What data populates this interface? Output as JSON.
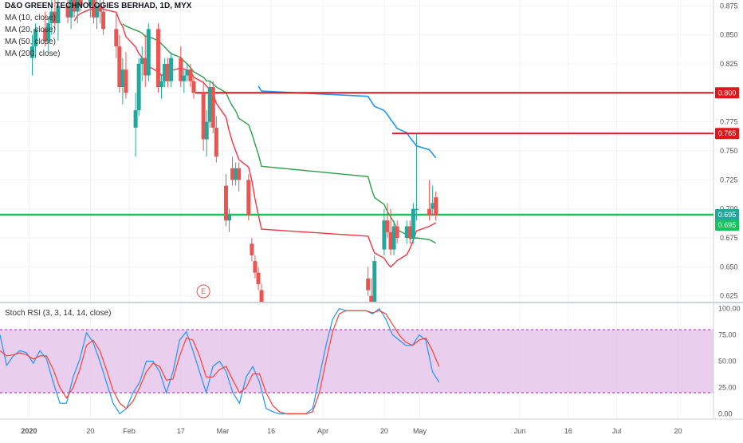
{
  "chart_data": [
    {
      "type": "candlestick",
      "title": "D&O GREEN TECHNOLOGIES BERHAD, 1D, MYX",
      "legend": [
        "MA (10, close)",
        "MA (20, close)",
        "MA (50, close)",
        "MA (200, close)"
      ],
      "ylim": [
        0.62,
        0.88
      ],
      "y_ticks": [
        "0.875",
        "0.850",
        "0.825",
        "0.800",
        "0.775",
        "0.750",
        "0.725",
        "0.700",
        "0.675",
        "0.650",
        "0.625"
      ],
      "x_ticks": [
        "2020",
        "20",
        "Feb",
        "17",
        "Mar",
        "16",
        "Apr",
        "20",
        "May",
        "Jun",
        "16",
        "Jul",
        "20"
      ],
      "price_labels": [
        {
          "value": 0.8,
          "text": "0.800",
          "color": "#e0161b"
        },
        {
          "value": 0.765,
          "text": "0.765",
          "color": "#e0161b"
        },
        {
          "value": 0.695,
          "text": "0.695",
          "color": "#26a69a"
        },
        {
          "value": 0.695,
          "text": "0.695",
          "color": "#18c35a"
        }
      ],
      "horizontal_lines": [
        {
          "value": 0.8,
          "color": "#e0161b"
        },
        {
          "value": 0.765,
          "color": "#e0161b"
        },
        {
          "value": 0.695,
          "color": "#18c35a"
        }
      ],
      "earnings_marker": "E",
      "candles": [
        {
          "date": "2020-01-02",
          "open": 0.83,
          "high": 0.85,
          "low": 0.815,
          "close": 0.84
        },
        {
          "date": "2020-01-03",
          "open": 0.84,
          "high": 0.86,
          "low": 0.83,
          "close": 0.855
        },
        {
          "date": "2020-01-06",
          "open": 0.855,
          "high": 0.87,
          "low": 0.84,
          "close": 0.845
        },
        {
          "date": "2020-01-07",
          "open": 0.845,
          "high": 0.865,
          "low": 0.835,
          "close": 0.86
        },
        {
          "date": "2020-01-08",
          "open": 0.86,
          "high": 0.88,
          "low": 0.85,
          "close": 0.87
        },
        {
          "date": "2020-01-09",
          "open": 0.87,
          "high": 0.885,
          "low": 0.855,
          "close": 0.86
        },
        {
          "date": "2020-01-10",
          "open": 0.86,
          "high": 0.88,
          "low": 0.845,
          "close": 0.875
        },
        {
          "date": "2020-01-13",
          "open": 0.875,
          "high": 0.89,
          "low": 0.86,
          "close": 0.865
        },
        {
          "date": "2020-01-14",
          "open": 0.865,
          "high": 0.885,
          "low": 0.855,
          "close": 0.88
        },
        {
          "date": "2020-01-15",
          "open": 0.88,
          "high": 0.89,
          "low": 0.865,
          "close": 0.87
        },
        {
          "date": "2020-01-16",
          "open": 0.87,
          "high": 0.89,
          "low": 0.86,
          "close": 0.885
        },
        {
          "date": "2020-01-17",
          "open": 0.885,
          "high": 0.89,
          "low": 0.87,
          "close": 0.875
        },
        {
          "date": "2020-01-20",
          "open": 0.875,
          "high": 0.89,
          "low": 0.865,
          "close": 0.88
        },
        {
          "date": "2020-01-21",
          "open": 0.88,
          "high": 0.89,
          "low": 0.86,
          "close": 0.865
        },
        {
          "date": "2020-01-22",
          "open": 0.865,
          "high": 0.88,
          "low": 0.855,
          "close": 0.875
        },
        {
          "date": "2020-01-23",
          "open": 0.875,
          "high": 0.89,
          "low": 0.86,
          "close": 0.87
        },
        {
          "date": "2020-01-24",
          "open": 0.87,
          "high": 0.885,
          "low": 0.85,
          "close": 0.855
        },
        {
          "date": "2020-01-28",
          "open": 0.855,
          "high": 0.87,
          "low": 0.83,
          "close": 0.84
        },
        {
          "date": "2020-01-29",
          "open": 0.84,
          "high": 0.85,
          "low": 0.8,
          "close": 0.805
        },
        {
          "date": "2020-01-30",
          "open": 0.805,
          "high": 0.83,
          "low": 0.79,
          "close": 0.82
        },
        {
          "date": "2020-01-31",
          "open": 0.82,
          "high": 0.835,
          "low": 0.795,
          "close": 0.8
        },
        {
          "date": "2020-02-03",
          "open": 0.77,
          "high": 0.8,
          "low": 0.745,
          "close": 0.785
        },
        {
          "date": "2020-02-04",
          "open": 0.785,
          "high": 0.83,
          "low": 0.78,
          "close": 0.825
        },
        {
          "date": "2020-02-05",
          "open": 0.825,
          "high": 0.84,
          "low": 0.81,
          "close": 0.83
        },
        {
          "date": "2020-02-06",
          "open": 0.83,
          "high": 0.85,
          "low": 0.805,
          "close": 0.815
        },
        {
          "date": "2020-02-07",
          "open": 0.815,
          "high": 0.86,
          "low": 0.81,
          "close": 0.855
        },
        {
          "date": "2020-02-10",
          "open": 0.855,
          "high": 0.86,
          "low": 0.8,
          "close": 0.805
        },
        {
          "date": "2020-02-11",
          "open": 0.805,
          "high": 0.815,
          "low": 0.795,
          "close": 0.81
        },
        {
          "date": "2020-02-12",
          "open": 0.81,
          "high": 0.83,
          "low": 0.805,
          "close": 0.825
        },
        {
          "date": "2020-02-13",
          "open": 0.825,
          "high": 0.83,
          "low": 0.805,
          "close": 0.81
        },
        {
          "date": "2020-02-14",
          "open": 0.81,
          "high": 0.835,
          "low": 0.805,
          "close": 0.83
        },
        {
          "date": "2020-02-17",
          "open": 0.83,
          "high": 0.84,
          "low": 0.805,
          "close": 0.81
        },
        {
          "date": "2020-02-18",
          "open": 0.81,
          "high": 0.82,
          "low": 0.8,
          "close": 0.815
        },
        {
          "date": "2020-02-19",
          "open": 0.815,
          "high": 0.825,
          "low": 0.81,
          "close": 0.82
        },
        {
          "date": "2020-02-20",
          "open": 0.82,
          "high": 0.825,
          "low": 0.805,
          "close": 0.81
        },
        {
          "date": "2020-02-21",
          "open": 0.81,
          "high": 0.815,
          "low": 0.795,
          "close": 0.8
        },
        {
          "date": "2020-02-24",
          "open": 0.8,
          "high": 0.81,
          "low": 0.75,
          "close": 0.76
        },
        {
          "date": "2020-02-25",
          "open": 0.76,
          "high": 0.785,
          "low": 0.745,
          "close": 0.775
        },
        {
          "date": "2020-02-26",
          "open": 0.775,
          "high": 0.81,
          "low": 0.77,
          "close": 0.805
        },
        {
          "date": "2020-02-27",
          "open": 0.805,
          "high": 0.81,
          "low": 0.765,
          "close": 0.77
        },
        {
          "date": "2020-02-28",
          "open": 0.77,
          "high": 0.78,
          "low": 0.74,
          "close": 0.745
        },
        {
          "date": "2020-03-02",
          "open": 0.72,
          "high": 0.73,
          "low": 0.685,
          "close": 0.69
        },
        {
          "date": "2020-03-03",
          "open": 0.69,
          "high": 0.7,
          "low": 0.68,
          "close": 0.695
        },
        {
          "date": "2020-03-04",
          "open": 0.735,
          "high": 0.745,
          "low": 0.72,
          "close": 0.725
        },
        {
          "date": "2020-03-05",
          "open": 0.725,
          "high": 0.74,
          "low": 0.72,
          "close": 0.735
        },
        {
          "date": "2020-03-06",
          "open": 0.735,
          "high": 0.74,
          "low": 0.715,
          "close": 0.725
        },
        {
          "date": "2020-03-09",
          "open": 0.725,
          "high": 0.73,
          "low": 0.69,
          "close": 0.695
        },
        {
          "date": "2020-03-10",
          "open": 0.67,
          "high": 0.675,
          "low": 0.655,
          "close": 0.66
        },
        {
          "date": "2020-03-11",
          "open": 0.655,
          "high": 0.66,
          "low": 0.64,
          "close": 0.645
        },
        {
          "date": "2020-03-12",
          "open": 0.645,
          "high": 0.65,
          "low": 0.63,
          "close": 0.635
        },
        {
          "date": "2020-03-13",
          "open": 0.63,
          "high": 0.635,
          "low": 0.615,
          "close": 0.62
        },
        {
          "date": "2020-04-15",
          "open": 0.64,
          "high": 0.65,
          "low": 0.625,
          "close": 0.63
        },
        {
          "date": "2020-04-16",
          "open": 0.625,
          "high": 0.64,
          "low": 0.615,
          "close": 0.62
        },
        {
          "date": "2020-04-17",
          "open": 0.615,
          "high": 0.66,
          "low": 0.61,
          "close": 0.655
        },
        {
          "date": "2020-04-20",
          "open": 0.665,
          "high": 0.7,
          "low": 0.66,
          "close": 0.69
        },
        {
          "date": "2020-04-21",
          "open": 0.69,
          "high": 0.705,
          "low": 0.675,
          "close": 0.68
        },
        {
          "date": "2020-04-22",
          "open": 0.68,
          "high": 0.7,
          "low": 0.66,
          "close": 0.665
        },
        {
          "date": "2020-04-23",
          "open": 0.665,
          "high": 0.69,
          "low": 0.66,
          "close": 0.685
        },
        {
          "date": "2020-04-24",
          "open": 0.685,
          "high": 0.69,
          "low": 0.67,
          "close": 0.675
        },
        {
          "date": "2020-04-27",
          "open": 0.675,
          "high": 0.69,
          "low": 0.67,
          "close": 0.685
        },
        {
          "date": "2020-04-28",
          "open": 0.685,
          "high": 0.69,
          "low": 0.67,
          "close": 0.675
        },
        {
          "date": "2020-04-29",
          "open": 0.675,
          "high": 0.705,
          "low": 0.67,
          "close": 0.7
        },
        {
          "date": "2020-04-30",
          "open": 0.7,
          "high": 0.765,
          "low": 0.69,
          "close": 0.7
        },
        {
          "date": "2020-05-04",
          "open": 0.7,
          "high": 0.725,
          "low": 0.69,
          "close": 0.695
        },
        {
          "date": "2020-05-05",
          "open": 0.7,
          "high": 0.72,
          "low": 0.695,
          "close": 0.705
        },
        {
          "date": "2020-05-06",
          "open": 0.71,
          "high": 0.715,
          "low": 0.69,
          "close": 0.695
        }
      ]
    },
    {
      "type": "line",
      "title": "Stoch RSI (3, 3, 14, 14, close)",
      "ylim": [
        -5,
        105
      ],
      "y_ticks": [
        "100.00",
        "75.00",
        "50.00",
        "25.00",
        "0.00"
      ],
      "band": [
        20,
        80
      ],
      "series": [
        {
          "name": "K",
          "color": "#2196f3",
          "values": [
            75,
            46,
            55,
            60,
            58,
            48,
            60,
            52,
            30,
            10,
            10,
            35,
            52,
            77,
            68,
            50,
            30,
            10,
            0,
            5,
            20,
            30,
            50,
            50,
            40,
            20,
            40,
            70,
            78,
            60,
            40,
            20,
            45,
            50,
            40,
            20,
            10,
            35,
            45,
            30,
            5,
            2,
            0,
            0,
            0,
            0,
            0,
            5,
            35,
            65,
            90,
            100,
            98,
            98,
            98,
            98,
            95,
            100,
            90,
            75,
            70,
            65,
            65,
            75,
            70,
            40,
            30
          ]
        },
        {
          "name": "D",
          "color": "#f44336",
          "values": [
            60,
            55,
            56,
            58,
            56,
            52,
            55,
            55,
            42,
            25,
            15,
            25,
            42,
            65,
            70,
            60,
            42,
            22,
            10,
            5,
            12,
            25,
            40,
            48,
            45,
            32,
            33,
            55,
            72,
            70,
            55,
            35,
            35,
            42,
            45,
            32,
            20,
            25,
            38,
            38,
            20,
            8,
            2,
            0,
            0,
            0,
            0,
            2,
            20,
            50,
            78,
            95,
            98,
            98,
            98,
            98,
            96,
            98,
            95,
            85,
            75,
            68,
            65,
            70,
            72,
            60,
            45
          ]
        }
      ],
      "x_ticks": [
        "2020",
        "20",
        "Feb",
        "17",
        "Mar",
        "16",
        "Apr",
        "20",
        "May",
        "Jun",
        "16",
        "Jul",
        "20"
      ]
    }
  ]
}
